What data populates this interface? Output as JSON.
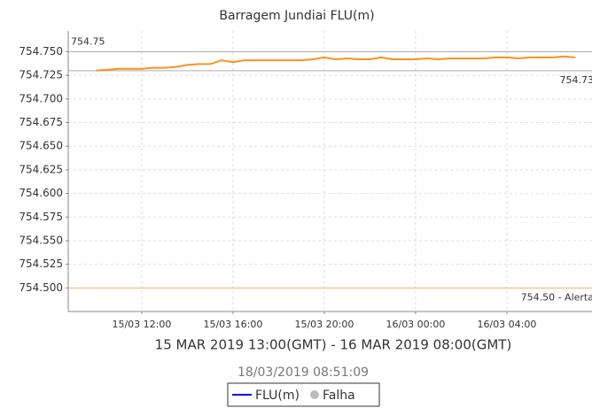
{
  "chart_data": {
    "type": "line",
    "title": "Barragem Jundiai FLU(m)",
    "x_label": "15 MAR 2019 13:00(GMT) - 16 MAR 2019 08:00(GMT)",
    "timestamp": "18/03/2019 08:51:09",
    "x": [
      10,
      10.5,
      11,
      11.5,
      12,
      12.5,
      13,
      13.5,
      14,
      14.5,
      15,
      15.5,
      16,
      16.5,
      17,
      17.5,
      18,
      18.5,
      19,
      19.5,
      20,
      20.5,
      21,
      21.5,
      22,
      22.5,
      23,
      23.5,
      24,
      24.5,
      25,
      25.5,
      26,
      26.5,
      27,
      27.5,
      28,
      28.5,
      29,
      29.5,
      30,
      30.5,
      31
    ],
    "series": [
      {
        "name": "FLU(m)",
        "color": "#f7941d",
        "legend_color": "#0000ff",
        "values": [
          754.73,
          754.731,
          754.732,
          754.732,
          754.732,
          754.733,
          754.733,
          754.734,
          754.736,
          754.737,
          754.737,
          754.741,
          754.739,
          754.741,
          754.741,
          754.741,
          754.741,
          754.741,
          754.741,
          754.742,
          754.744,
          754.742,
          754.743,
          754.742,
          754.742,
          754.744,
          754.742,
          754.742,
          754.742,
          754.743,
          754.742,
          754.743,
          754.743,
          754.743,
          754.743,
          754.744,
          754.744,
          754.743,
          754.744,
          754.744,
          754.744,
          754.745,
          754.744
        ]
      }
    ],
    "legend_extra": [
      {
        "name": "Falha",
        "color": "#bbbbbb"
      }
    ],
    "reference_lines": [
      {
        "value": 754.75,
        "label": "754.75",
        "color": "#aaaaaa",
        "side": "left"
      },
      {
        "value": 754.73,
        "label": "754.73",
        "color": "#aaaaaa",
        "side": "right"
      },
      {
        "value": 754.5,
        "label": "754.50 - Alerta",
        "color": "#f7b26a",
        "side": "right"
      }
    ],
    "xlim": [
      8.78,
      31.73
    ],
    "xticks": [
      {
        "value": 12,
        "label": "15/03 12:00"
      },
      {
        "value": 16,
        "label": "15/03 16:00"
      },
      {
        "value": 20,
        "label": "15/03 20:00"
      },
      {
        "value": 24,
        "label": "16/03 00:00"
      },
      {
        "value": 28,
        "label": "16/03 04:00"
      }
    ],
    "ylim": [
      754.475,
      754.772
    ],
    "yticks": [
      {
        "value": 754.5,
        "label": "754.500"
      },
      {
        "value": 754.525,
        "label": "754.525"
      },
      {
        "value": 754.55,
        "label": "754.550"
      },
      {
        "value": 754.575,
        "label": "754.575"
      },
      {
        "value": 754.6,
        "label": "754.600"
      },
      {
        "value": 754.625,
        "label": "754.625"
      },
      {
        "value": 754.65,
        "label": "754.650"
      },
      {
        "value": 754.675,
        "label": "754.675"
      },
      {
        "value": 754.7,
        "label": "754.700"
      },
      {
        "value": 754.725,
        "label": "754.725"
      },
      {
        "value": 754.75,
        "label": "754.750"
      }
    ],
    "grid": true
  }
}
